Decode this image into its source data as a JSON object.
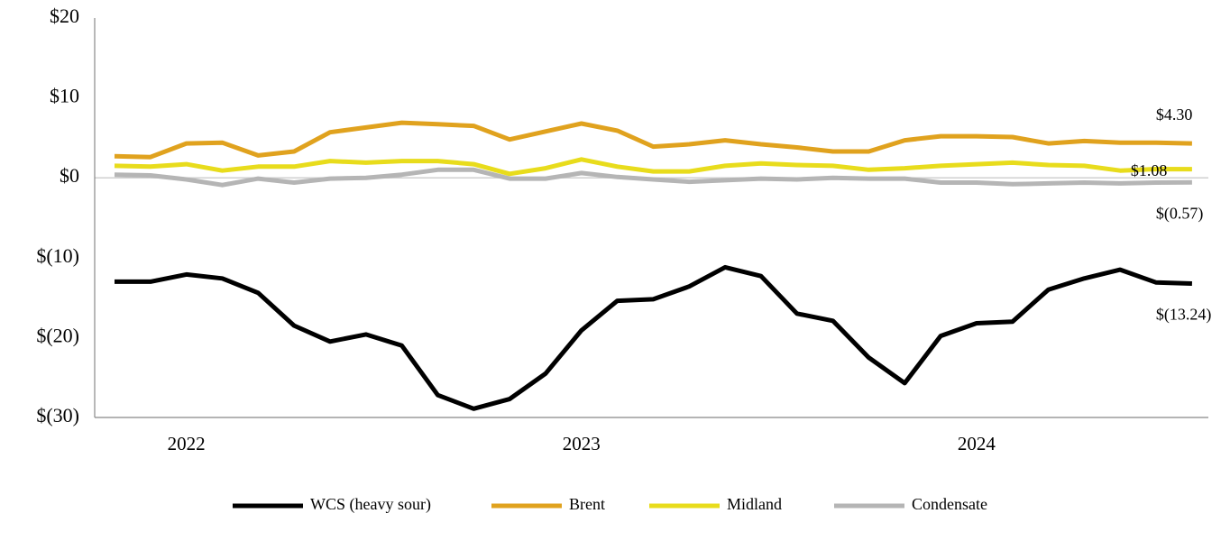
{
  "chart_data": {
    "type": "line",
    "categories": [
      null,
      null,
      "2022",
      null,
      null,
      null,
      null,
      null,
      null,
      null,
      null,
      null,
      null,
      "2023",
      null,
      null,
      null,
      null,
      null,
      null,
      null,
      null,
      null,
      null,
      "2024",
      null,
      null,
      null,
      null,
      null,
      null
    ],
    "ylim": [
      -30,
      20
    ],
    "yticks": [
      {
        "value": 20,
        "label": "$20"
      },
      {
        "value": 10,
        "label": "$10"
      },
      {
        "value": 0,
        "label": "$0"
      },
      {
        "value": -10,
        "label": "$(10)"
      },
      {
        "value": -20,
        "label": "$(20)"
      },
      {
        "value": -30,
        "label": "$(30)"
      }
    ],
    "series": [
      {
        "name": "WCS (heavy sour)",
        "color": "#000000",
        "values": [
          -13.0,
          -13.0,
          -12.1,
          -12.6,
          -14.4,
          -18.5,
          -20.5,
          -19.6,
          -21.0,
          -27.2,
          -28.9,
          -27.7,
          -24.5,
          -19.1,
          -15.4,
          -15.2,
          -13.6,
          -11.2,
          -12.3,
          -17.0,
          -17.9,
          -22.5,
          -25.7,
          -19.8,
          -18.2,
          -18.0,
          -14.0,
          -12.6,
          -11.5,
          -13.1,
          -13.24
        ],
        "value_labels": [
          null,
          null,
          null,
          null,
          null,
          null,
          null,
          null,
          null,
          null,
          null,
          null,
          null,
          null,
          null,
          null,
          null,
          null,
          null,
          null,
          null,
          null,
          null,
          null,
          null,
          null,
          null,
          null,
          null,
          null,
          "$(13.24)"
        ]
      },
      {
        "name": "Brent",
        "color": "#e0a21e",
        "values": [
          2.7,
          2.6,
          4.3,
          4.4,
          2.8,
          3.3,
          5.7,
          6.3,
          6.9,
          6.7,
          6.5,
          4.8,
          5.8,
          6.8,
          5.9,
          3.9,
          4.2,
          4.7,
          4.2,
          3.8,
          3.3,
          3.3,
          4.7,
          5.2,
          5.2,
          5.1,
          4.3,
          4.6,
          4.4,
          4.4,
          4.3
        ],
        "value_labels": [
          null,
          null,
          null,
          null,
          null,
          null,
          null,
          null,
          null,
          null,
          null,
          null,
          null,
          null,
          null,
          null,
          null,
          null,
          null,
          null,
          null,
          null,
          null,
          null,
          null,
          null,
          null,
          null,
          null,
          null,
          "$4.30"
        ]
      },
      {
        "name": "Midland",
        "color": "#e8dc1c",
        "values": [
          1.5,
          1.4,
          1.7,
          0.9,
          1.4,
          1.4,
          2.1,
          1.9,
          2.1,
          2.1,
          1.7,
          0.5,
          1.2,
          2.3,
          1.4,
          0.8,
          0.8,
          1.5,
          1.8,
          1.6,
          1.5,
          1.0,
          1.2,
          1.5,
          1.7,
          1.9,
          1.6,
          1.5,
          0.9,
          1.1,
          1.08
        ],
        "value_labels": [
          null,
          null,
          null,
          null,
          null,
          null,
          null,
          null,
          null,
          null,
          null,
          null,
          null,
          null,
          null,
          null,
          null,
          null,
          null,
          null,
          null,
          null,
          null,
          null,
          null,
          null,
          null,
          null,
          null,
          null,
          "$1.08"
        ]
      },
      {
        "name": "Condensate",
        "color": "#b5b5b5",
        "values": [
          0.4,
          0.3,
          -0.2,
          -0.9,
          -0.1,
          -0.6,
          -0.1,
          0.0,
          0.4,
          1.0,
          1.0,
          -0.1,
          -0.1,
          0.6,
          0.1,
          -0.2,
          -0.5,
          -0.3,
          -0.1,
          -0.2,
          0.0,
          -0.1,
          -0.1,
          -0.6,
          -0.6,
          -0.8,
          -0.7,
          -0.6,
          -0.7,
          -0.6,
          -0.57
        ],
        "value_labels": [
          null,
          null,
          null,
          null,
          null,
          null,
          null,
          null,
          null,
          null,
          null,
          null,
          null,
          null,
          null,
          null,
          null,
          null,
          null,
          null,
          null,
          null,
          null,
          null,
          null,
          null,
          null,
          null,
          null,
          null,
          "$(0.57)"
        ]
      }
    ]
  }
}
